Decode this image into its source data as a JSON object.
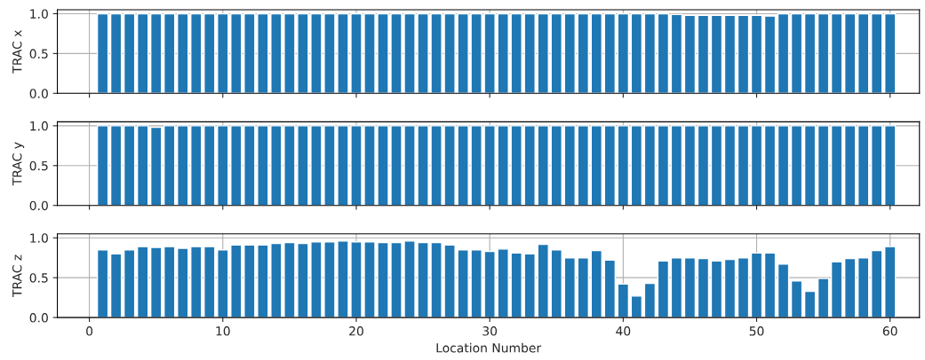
{
  "chart_data": [
    {
      "type": "bar",
      "ylabel": "TRAC x",
      "x": [
        1,
        2,
        3,
        4,
        5,
        6,
        7,
        8,
        9,
        10,
        11,
        12,
        13,
        14,
        15,
        16,
        17,
        18,
        19,
        20,
        21,
        22,
        23,
        24,
        25,
        26,
        27,
        28,
        29,
        30,
        31,
        32,
        33,
        34,
        35,
        36,
        37,
        38,
        39,
        40,
        41,
        42,
        43,
        44,
        45,
        46,
        47,
        48,
        49,
        50,
        51,
        52,
        53,
        54,
        55,
        56,
        57,
        58,
        59,
        60
      ],
      "series": [
        {
          "color": "#1f77b4",
          "values": [
            1,
            1,
            1,
            1,
            1,
            1,
            1,
            1,
            1,
            1,
            1,
            1,
            1,
            1,
            1,
            1,
            1,
            1,
            1,
            1,
            1,
            1,
            1,
            1,
            1,
            1,
            1,
            1,
            1,
            1,
            1,
            1,
            1,
            1,
            1,
            1,
            1,
            1,
            1,
            1,
            1,
            1,
            1,
            0.99,
            0.98,
            0.98,
            0.98,
            0.98,
            0.98,
            0.98,
            0.97,
            1,
            1,
            1,
            1,
            1,
            1,
            1,
            1,
            1
          ]
        }
      ],
      "xlim": [
        -2.4,
        62.2
      ],
      "ylim": [
        0,
        1.05
      ],
      "xticks": [
        0,
        10,
        20,
        30,
        40,
        50,
        60
      ],
      "yticks": [
        {
          "value": 0,
          "label": "0.0"
        },
        {
          "value": 0.5,
          "label": "0.5"
        },
        {
          "value": 1,
          "label": "1.0"
        }
      ],
      "grid": true,
      "tick_labels": "y"
    },
    {
      "type": "bar",
      "ylabel": "TRAC y",
      "x": [
        1,
        2,
        3,
        4,
        5,
        6,
        7,
        8,
        9,
        10,
        11,
        12,
        13,
        14,
        15,
        16,
        17,
        18,
        19,
        20,
        21,
        22,
        23,
        24,
        25,
        26,
        27,
        28,
        29,
        30,
        31,
        32,
        33,
        34,
        35,
        36,
        37,
        38,
        39,
        40,
        41,
        42,
        43,
        44,
        45,
        46,
        47,
        48,
        49,
        50,
        51,
        52,
        53,
        54,
        55,
        56,
        57,
        58,
        59,
        60
      ],
      "series": [
        {
          "color": "#1f77b4",
          "values": [
            1,
            1,
            1,
            1,
            0.98,
            1,
            1,
            1,
            1,
            1,
            1,
            1,
            1,
            1,
            1,
            1,
            1,
            1,
            1,
            1,
            1,
            1,
            1,
            1,
            1,
            1,
            1,
            1,
            1,
            1,
            1,
            1,
            1,
            1,
            1,
            1,
            1,
            1,
            1,
            1,
            1,
            1,
            1,
            1,
            1,
            1,
            1,
            1,
            1,
            1,
            1,
            1,
            1,
            1,
            1,
            1,
            1,
            1,
            1,
            1
          ]
        }
      ],
      "xlim": [
        -2.4,
        62.2
      ],
      "ylim": [
        0,
        1.05
      ],
      "xticks": [
        0,
        10,
        20,
        30,
        40,
        50,
        60
      ],
      "yticks": [
        {
          "value": 0,
          "label": "0.0"
        },
        {
          "value": 0.5,
          "label": "0.5"
        },
        {
          "value": 1,
          "label": "1.0"
        }
      ],
      "grid": true,
      "tick_labels": "y"
    },
    {
      "type": "bar",
      "ylabel": "TRAC z",
      "xlabel": "Location Number",
      "x": [
        1,
        2,
        3,
        4,
        5,
        6,
        7,
        8,
        9,
        10,
        11,
        12,
        13,
        14,
        15,
        16,
        17,
        18,
        19,
        20,
        21,
        22,
        23,
        24,
        25,
        26,
        27,
        28,
        29,
        30,
        31,
        32,
        33,
        34,
        35,
        36,
        37,
        38,
        39,
        40,
        41,
        42,
        43,
        44,
        45,
        46,
        47,
        48,
        49,
        50,
        51,
        52,
        53,
        54,
        55,
        56,
        57,
        58,
        59,
        60
      ],
      "series": [
        {
          "color": "#1f77b4",
          "values": [
            0.85,
            0.8,
            0.85,
            0.89,
            0.88,
            0.89,
            0.87,
            0.89,
            0.89,
            0.85,
            0.91,
            0.91,
            0.91,
            0.93,
            0.94,
            0.93,
            0.95,
            0.95,
            0.96,
            0.95,
            0.95,
            0.94,
            0.94,
            0.96,
            0.94,
            0.94,
            0.91,
            0.85,
            0.85,
            0.83,
            0.86,
            0.81,
            0.8,
            0.92,
            0.85,
            0.75,
            0.75,
            0.84,
            0.72,
            0.42,
            0.27,
            0.43,
            0.71,
            0.75,
            0.75,
            0.74,
            0.71,
            0.73,
            0.75,
            0.81,
            0.81,
            0.67,
            0.46,
            0.33,
            0.49,
            0.7,
            0.74,
            0.75,
            0.84,
            0.89
          ]
        }
      ],
      "xlim": [
        -2.4,
        62.2
      ],
      "ylim": [
        0,
        1.05
      ],
      "xticks": [
        0,
        10,
        20,
        30,
        40,
        50,
        60
      ],
      "yticks": [
        {
          "value": 0,
          "label": "0.0"
        },
        {
          "value": 0.5,
          "label": "0.5"
        },
        {
          "value": 1,
          "label": "1.0"
        }
      ],
      "grid": true
    }
  ]
}
